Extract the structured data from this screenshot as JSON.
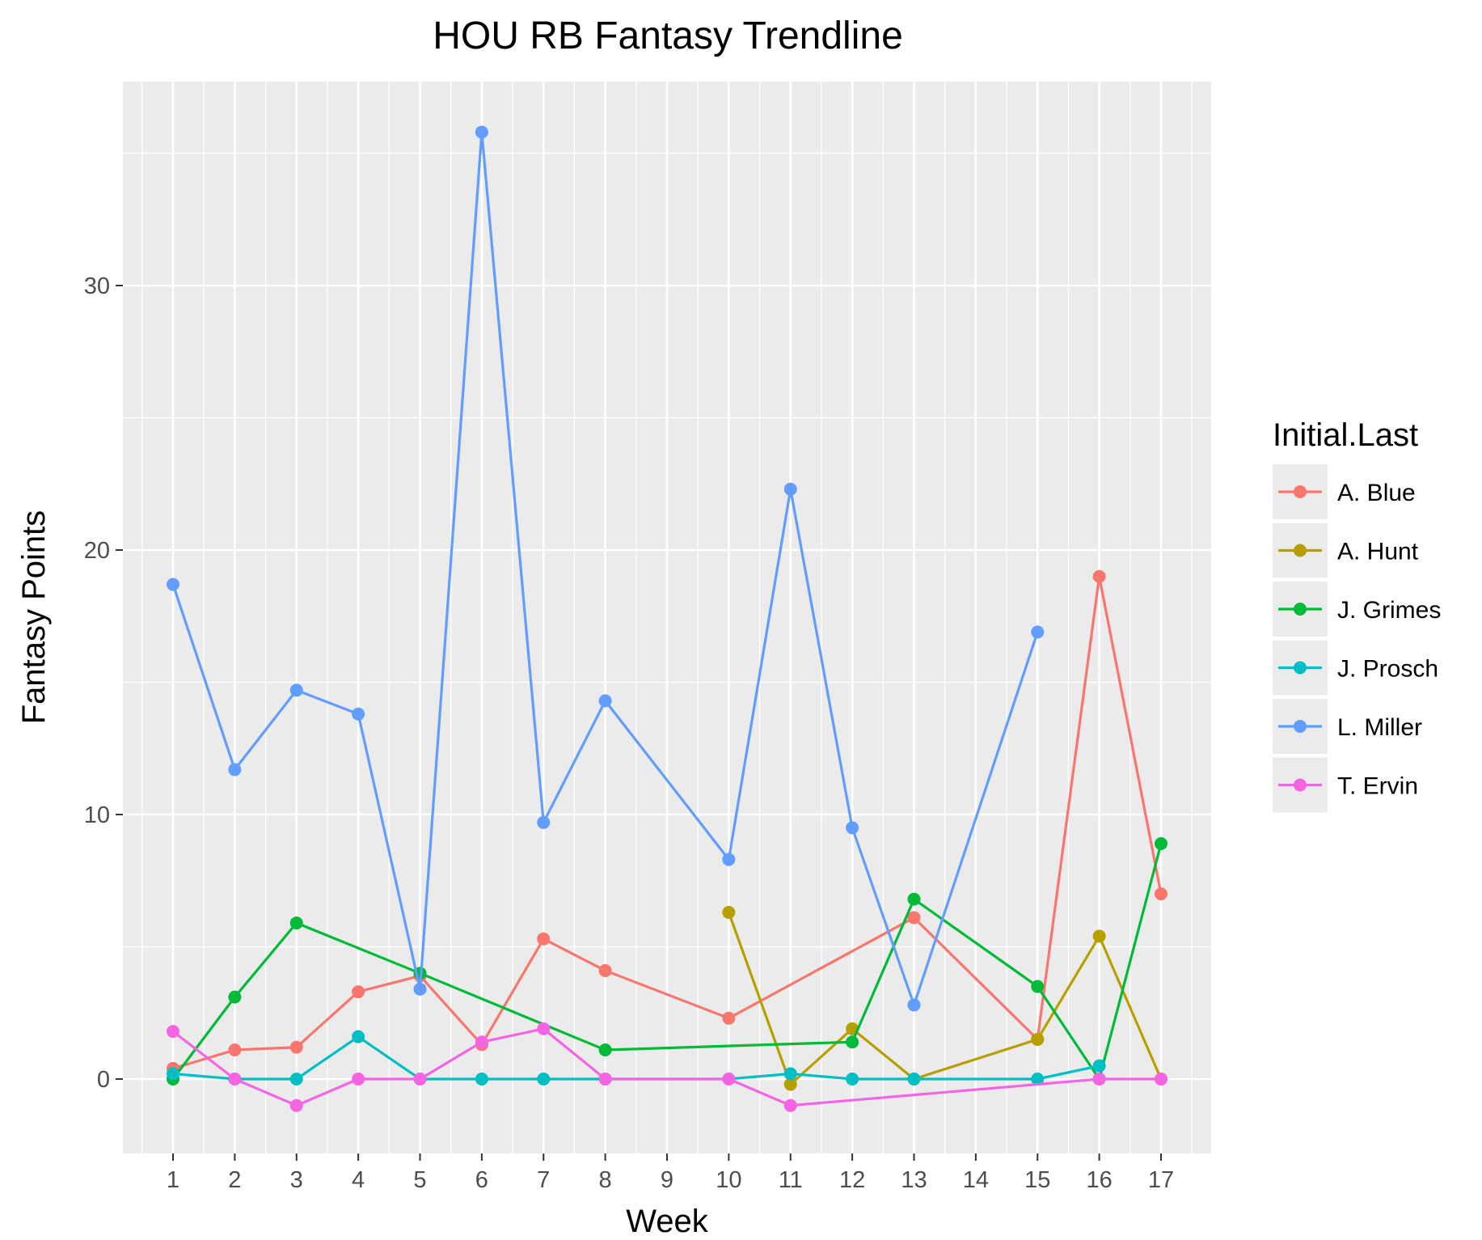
{
  "chart_data": {
    "type": "line",
    "title": "HOU RB Fantasy Trendline",
    "xlabel": "Week",
    "ylabel": "Fantasy Points",
    "categories": [
      "1",
      "2",
      "3",
      "4",
      "5",
      "6",
      "7",
      "8",
      "9",
      "10",
      "11",
      "12",
      "13",
      "14",
      "15",
      "16",
      "17"
    ],
    "yticks": [
      0,
      10,
      20,
      30
    ],
    "ylim": [
      -2.8,
      37.8
    ],
    "grid": true,
    "legend": {
      "title": "Initial.Last",
      "position": "right"
    },
    "series": [
      {
        "name": "A. Blue",
        "color": "#F8766D",
        "points": [
          [
            "1",
            0.4
          ],
          [
            "2",
            1.1
          ],
          [
            "3",
            1.2
          ],
          [
            "4",
            3.3
          ],
          [
            "5",
            3.9
          ],
          [
            "6",
            1.3
          ],
          [
            "7",
            5.3
          ],
          [
            "8",
            4.1
          ],
          [
            "10",
            2.3
          ],
          [
            "13",
            6.1
          ],
          [
            "15",
            1.5
          ],
          [
            "16",
            19.0
          ],
          [
            "17",
            7.0
          ]
        ]
      },
      {
        "name": "A. Hunt",
        "color": "#B79F00",
        "points": [
          [
            "10",
            6.3
          ],
          [
            "11",
            -0.2
          ],
          [
            "12",
            1.9
          ],
          [
            "13",
            0.0
          ],
          [
            "15",
            1.5
          ],
          [
            "16",
            5.4
          ],
          [
            "17",
            0.0
          ]
        ]
      },
      {
        "name": "J. Grimes",
        "color": "#00BA38",
        "points": [
          [
            "1",
            0.0
          ],
          [
            "2",
            3.1
          ],
          [
            "3",
            5.9
          ],
          [
            "5",
            4.0
          ],
          [
            "8",
            1.1
          ],
          [
            "12",
            1.4
          ],
          [
            "13",
            6.8
          ],
          [
            "15",
            3.5
          ],
          [
            "16",
            0.0
          ],
          [
            "17",
            8.9
          ]
        ]
      },
      {
        "name": "J. Prosch",
        "color": "#00BFC4",
        "points": [
          [
            "1",
            0.2
          ],
          [
            "2",
            0.0
          ],
          [
            "3",
            0.0
          ],
          [
            "4",
            1.6
          ],
          [
            "5",
            0.0
          ],
          [
            "6",
            0.0
          ],
          [
            "7",
            0.0
          ],
          [
            "8",
            0.0
          ],
          [
            "10",
            0.0
          ],
          [
            "11",
            0.2
          ],
          [
            "12",
            0.0
          ],
          [
            "13",
            0.0
          ],
          [
            "15",
            0.0
          ],
          [
            "16",
            0.5
          ]
        ]
      },
      {
        "name": "L. Miller",
        "color": "#619CFF",
        "points": [
          [
            "1",
            18.7
          ],
          [
            "2",
            11.7
          ],
          [
            "3",
            14.7
          ],
          [
            "4",
            13.8
          ],
          [
            "5",
            3.4
          ],
          [
            "6",
            35.8
          ],
          [
            "7",
            9.7
          ],
          [
            "8",
            14.3
          ],
          [
            "10",
            8.3
          ],
          [
            "11",
            22.3
          ],
          [
            "12",
            9.5
          ],
          [
            "13",
            2.8
          ],
          [
            "15",
            16.9
          ]
        ]
      },
      {
        "name": "T. Ervin",
        "color": "#F564E3",
        "points": [
          [
            "1",
            1.8
          ],
          [
            "2",
            0.0
          ],
          [
            "3",
            -1.0
          ],
          [
            "4",
            0.0
          ],
          [
            "5",
            0.0
          ],
          [
            "6",
            1.4
          ],
          [
            "7",
            1.9
          ],
          [
            "8",
            0.0
          ],
          [
            "10",
            0.0
          ],
          [
            "11",
            -1.0
          ],
          [
            "16",
            0.0
          ],
          [
            "17",
            0.0
          ]
        ]
      }
    ]
  }
}
